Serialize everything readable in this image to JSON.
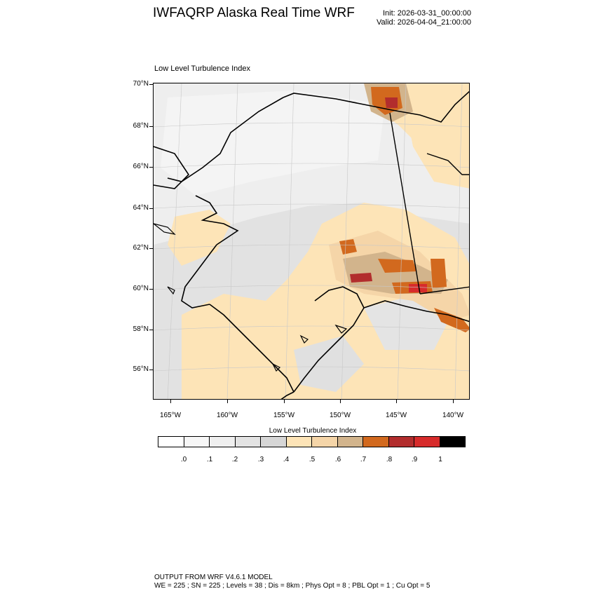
{
  "header": {
    "title": "IWFAQRP Alaska Real Time WRF",
    "init": "Init: 2026-03-31_00:00:00",
    "valid": "Valid: 2026-04-04_21:00:00"
  },
  "plot": {
    "title": "Low Level Turbulence Index"
  },
  "axes": {
    "lat_labels": [
      "70°N",
      "68°N",
      "66°N",
      "64°N",
      "62°N",
      "60°N",
      "58°N",
      "56°N"
    ],
    "lon_labels": [
      "165°W",
      "160°W",
      "155°W",
      "150°W",
      "145°W",
      "140°W"
    ]
  },
  "colorbar": {
    "title": "Low Level Turbulence Index",
    "labels": [
      ".0",
      ".1",
      ".2",
      ".3",
      ".4",
      ".5",
      ".6",
      ".7",
      ".8",
      ".9",
      "1"
    ],
    "colors": [
      "#ffffff",
      "#f7f7f7",
      "#efefef",
      "#e3e3e3",
      "#d6d6d6",
      "#fde4b7",
      "#f5d5a8",
      "#d2b48c",
      "#d2691e",
      "#b22d2d",
      "#d72b2b",
      "#000000"
    ]
  },
  "footer": {
    "line1": "OUTPUT FROM WRF V4.6.1 MODEL",
    "line2": "WE = 225 ; SN = 225 ; Levels = 38 ; Dis = 8km ; Phys Opt = 8 ; PBL Opt = 1 ; Cu Opt = 5"
  }
}
